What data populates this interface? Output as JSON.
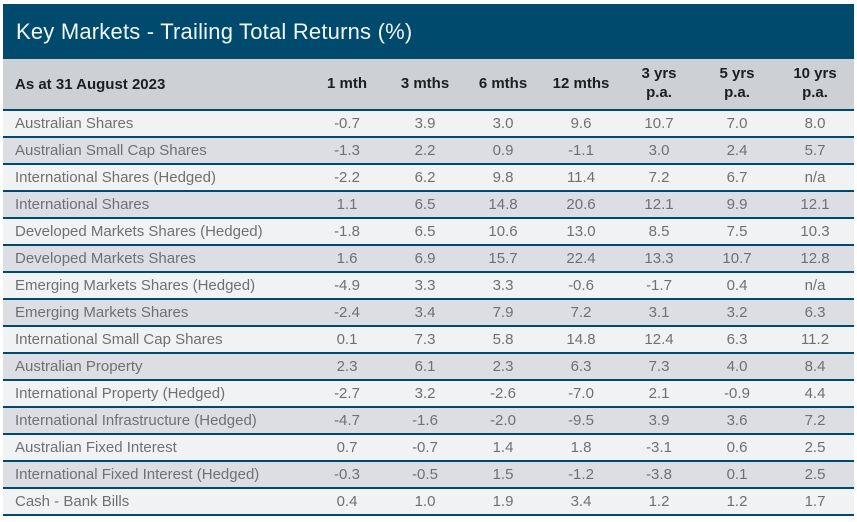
{
  "colors": {
    "teal": "#004a6e",
    "header_row_bg": "#cdd0d5",
    "row_odd_bg": "#f1f2f4",
    "row_even_bg": "#dcdee3",
    "header_text": "#1d1e20",
    "data_text": "#6e7073",
    "title_text": "#f2f6f8",
    "page_bg": "#ffffff"
  },
  "chart_data": {
    "type": "table",
    "title": "Key Markets - Trailing Total Returns (%)",
    "date_label": "As at 31 August 2023",
    "columns": [
      "1 mth",
      "3 mths",
      "6 mths",
      "12 mths",
      "3 yrs\np.a.",
      "5 yrs\np.a.",
      "10 yrs\np.a."
    ],
    "rows": [
      {
        "label": "Australian Shares",
        "values": [
          "-0.7",
          "3.9",
          "3.0",
          "9.6",
          "10.7",
          "7.0",
          "8.0"
        ]
      },
      {
        "label": "Australian Small Cap Shares",
        "values": [
          "-1.3",
          "2.2",
          "0.9",
          "-1.1",
          "3.0",
          "2.4",
          "5.7"
        ]
      },
      {
        "label": "International Shares (Hedged)",
        "values": [
          "-2.2",
          "6.2",
          "9.8",
          "11.4",
          "7.2",
          "6.7",
          "n/a"
        ]
      },
      {
        "label": "International Shares",
        "values": [
          "1.1",
          "6.5",
          "14.8",
          "20.6",
          "12.1",
          "9.9",
          "12.1"
        ]
      },
      {
        "label": "Developed Markets Shares (Hedged)",
        "values": [
          "-1.8",
          "6.5",
          "10.6",
          "13.0",
          "8.5",
          "7.5",
          "10.3"
        ]
      },
      {
        "label": "Developed Markets Shares",
        "values": [
          "1.6",
          "6.9",
          "15.7",
          "22.4",
          "13.3",
          "10.7",
          "12.8"
        ]
      },
      {
        "label": "Emerging Markets Shares (Hedged)",
        "values": [
          "-4.9",
          "3.3",
          "3.3",
          "-0.6",
          "-1.7",
          "0.4",
          "n/a"
        ]
      },
      {
        "label": "Emerging Markets Shares",
        "values": [
          "-2.4",
          "3.4",
          "7.9",
          "7.2",
          "3.1",
          "3.2",
          "6.3"
        ]
      },
      {
        "label": "International Small Cap Shares",
        "values": [
          "0.1",
          "7.3",
          "5.8",
          "14.8",
          "12.4",
          "6.3",
          "11.2"
        ]
      },
      {
        "label": "Australian Property",
        "values": [
          "2.3",
          "6.1",
          "2.3",
          "6.3",
          "7.3",
          "4.0",
          "8.4"
        ]
      },
      {
        "label": "International Property (Hedged)",
        "values": [
          "-2.7",
          "3.2",
          "-2.6",
          "-7.0",
          "2.1",
          "-0.9",
          "4.4"
        ]
      },
      {
        "label": "International Infrastructure (Hedged)",
        "values": [
          "-4.7",
          "-1.6",
          "-2.0",
          "-9.5",
          "3.9",
          "3.6",
          "7.2"
        ]
      },
      {
        "label": "Australian Fixed Interest",
        "values": [
          "0.7",
          "-0.7",
          "1.4",
          "1.8",
          "-3.1",
          "0.6",
          "2.5"
        ]
      },
      {
        "label": "International Fixed Interest (Hedged)",
        "values": [
          "-0.3",
          "-0.5",
          "1.5",
          "-1.2",
          "-3.8",
          "0.1",
          "2.5"
        ]
      },
      {
        "label": "Cash - Bank Bills",
        "values": [
          "0.4",
          "1.0",
          "1.9",
          "3.4",
          "1.2",
          "1.2",
          "1.7"
        ]
      }
    ]
  }
}
